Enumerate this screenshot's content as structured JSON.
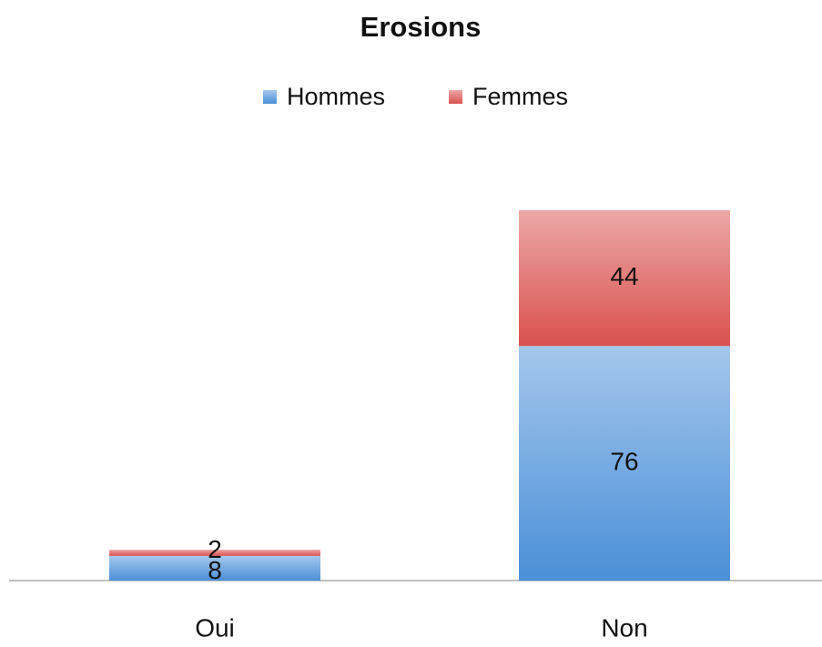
{
  "chart_data": {
    "type": "stacked_bar",
    "title": "Erosions",
    "categories": [
      "Oui",
      "Non"
    ],
    "series": [
      {
        "name": "Hommes",
        "color": "#4a8fd8",
        "values": [
          8,
          76
        ]
      },
      {
        "name": "Femmes",
        "color": "#d9514e",
        "values": [
          2,
          44
        ]
      }
    ],
    "legend": "top"
  }
}
